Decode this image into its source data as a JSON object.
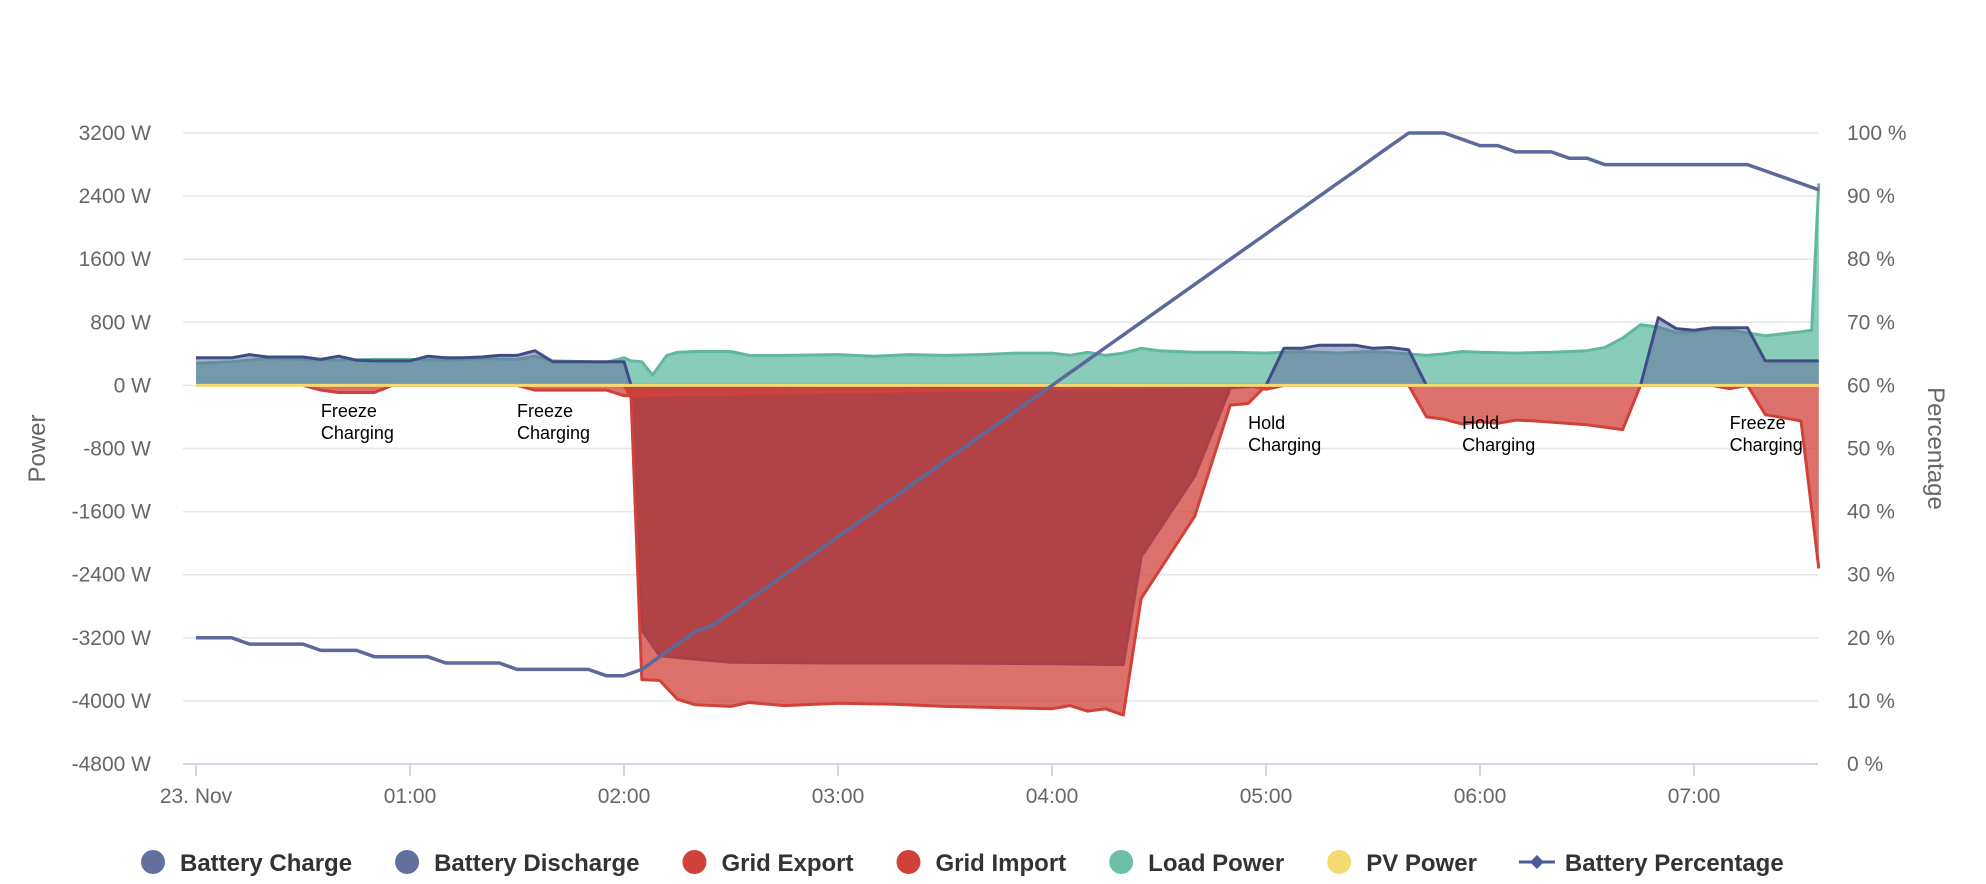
{
  "chart_data": {
    "type": "area",
    "yaxis_left": {
      "title": "Power",
      "range": [
        -4800,
        3200
      ],
      "ticks": [
        3200,
        2400,
        1600,
        800,
        0,
        -800,
        -1600,
        -2400,
        -3200,
        -4000,
        -4800
      ],
      "tick_labels": [
        "3200 W",
        "2400 W",
        "1600 W",
        "800 W",
        "0 W",
        "-800 W",
        "-1600 W",
        "-2400 W",
        "-3200 W",
        "-4000 W",
        "-4800 W"
      ]
    },
    "yaxis_right": {
      "title": "Percentage",
      "range": [
        0,
        100
      ],
      "ticks": [
        100,
        90,
        80,
        70,
        60,
        50,
        40,
        30,
        20,
        10,
        0
      ],
      "tick_labels": [
        "100 %",
        "90 %",
        "80 %",
        "70 %",
        "60 %",
        "50 %",
        "40 %",
        "30 %",
        "20 %",
        "10 %",
        "0 %"
      ]
    },
    "xaxis": {
      "range": [
        "00:00",
        "07:40"
      ],
      "ticks": [
        "00:00",
        "01:00",
        "02:00",
        "03:00",
        "04:00",
        "05:00",
        "06:00",
        "07:00"
      ],
      "tick_labels": [
        "23. Nov",
        "01:00",
        "02:00",
        "03:00",
        "04:00",
        "05:00",
        "06:00",
        "07:00"
      ]
    },
    "grid": true,
    "legend_position": "bottom",
    "series": [
      {
        "name": "Battery Charge",
        "color": "#6270a0",
        "kind": "area",
        "points": [
          [
            "00:00",
            350
          ],
          [
            "00:10",
            350
          ],
          [
            "00:15",
            390
          ],
          [
            "00:20",
            360
          ],
          [
            "00:30",
            360
          ],
          [
            "00:35",
            330
          ],
          [
            "00:40",
            370
          ],
          [
            "00:45",
            320
          ],
          [
            "00:50",
            310
          ],
          [
            "01:00",
            310
          ],
          [
            "01:05",
            370
          ],
          [
            "01:10",
            350
          ],
          [
            "01:15",
            350
          ],
          [
            "01:20",
            360
          ],
          [
            "01:25",
            380
          ],
          [
            "01:30",
            380
          ],
          [
            "01:35",
            440
          ],
          [
            "01:40",
            300
          ],
          [
            "01:50",
            300
          ],
          [
            "02:00",
            300
          ],
          [
            "02:02",
            0
          ],
          [
            "04:50",
            0
          ],
          [
            "05:00",
            0
          ],
          [
            "05:05",
            470
          ],
          [
            "05:10",
            470
          ],
          [
            "05:15",
            510
          ],
          [
            "05:25",
            510
          ],
          [
            "05:30",
            470
          ],
          [
            "05:35",
            480
          ],
          [
            "05:40",
            450
          ],
          [
            "05:45",
            0
          ],
          [
            "06:40",
            0
          ],
          [
            "06:45",
            0
          ],
          [
            "06:50",
            860
          ],
          [
            "06:55",
            720
          ],
          [
            "07:00",
            700
          ],
          [
            "07:05",
            730
          ],
          [
            "07:15",
            730
          ],
          [
            "07:20",
            310
          ],
          [
            "07:35",
            310
          ]
        ]
      },
      {
        "name": "Battery Discharge",
        "color": "#53446e",
        "kind": "area",
        "points": [
          [
            "02:00",
            0
          ],
          [
            "02:02",
            -80
          ],
          [
            "02:05",
            -3100
          ],
          [
            "02:10",
            -3430
          ],
          [
            "02:20",
            -3470
          ],
          [
            "02:30",
            -3510
          ],
          [
            "03:00",
            -3520
          ],
          [
            "03:30",
            -3520
          ],
          [
            "04:00",
            -3530
          ],
          [
            "04:20",
            -3540
          ],
          [
            "04:25",
            -2170
          ],
          [
            "04:40",
            -1150
          ],
          [
            "04:50",
            -30
          ],
          [
            "05:00",
            0
          ]
        ]
      },
      {
        "name": "Grid Export",
        "color": "#d0413a",
        "kind": "area",
        "points": [
          [
            "00:30",
            0
          ],
          [
            "00:35",
            -60
          ],
          [
            "00:40",
            -90
          ],
          [
            "00:50",
            -90
          ],
          [
            "00:55",
            0
          ],
          [
            "01:30",
            0
          ],
          [
            "01:35",
            -60
          ],
          [
            "01:45",
            -60
          ],
          [
            "01:55",
            -60
          ],
          [
            "02:00",
            -130
          ],
          [
            "04:55",
            0
          ],
          [
            "05:00",
            -50
          ],
          [
            "05:05",
            0
          ],
          [
            "07:05",
            0
          ],
          [
            "07:10",
            -40
          ],
          [
            "07:15",
            0
          ]
        ]
      },
      {
        "name": "Grid Import",
        "color": "#d0413a",
        "kind": "area",
        "points": [
          [
            "02:00",
            0
          ],
          [
            "02:02",
            -160
          ],
          [
            "02:05",
            -3730
          ],
          [
            "02:10",
            -3740
          ],
          [
            "02:15",
            -3980
          ],
          [
            "02:20",
            -4050
          ],
          [
            "02:30",
            -4070
          ],
          [
            "02:35",
            -4020
          ],
          [
            "02:45",
            -4060
          ],
          [
            "03:00",
            -4030
          ],
          [
            "03:15",
            -4040
          ],
          [
            "03:30",
            -4070
          ],
          [
            "04:00",
            -4100
          ],
          [
            "04:05",
            -4060
          ],
          [
            "04:10",
            -4130
          ],
          [
            "04:15",
            -4100
          ],
          [
            "04:20",
            -4180
          ],
          [
            "04:25",
            -2700
          ],
          [
            "04:40",
            -1660
          ],
          [
            "04:50",
            -250
          ],
          [
            "04:55",
            -230
          ],
          [
            "05:00",
            0
          ],
          [
            "05:40",
            0
          ],
          [
            "05:45",
            -400
          ],
          [
            "05:50",
            -430
          ],
          [
            "05:55",
            -490
          ],
          [
            "06:00",
            -460
          ],
          [
            "06:05",
            -480
          ],
          [
            "06:10",
            -440
          ],
          [
            "06:15",
            -450
          ],
          [
            "06:30",
            -500
          ],
          [
            "06:40",
            -560
          ],
          [
            "06:45",
            0
          ],
          [
            "07:15",
            0
          ],
          [
            "07:20",
            -370
          ],
          [
            "07:30",
            -450
          ],
          [
            "07:35",
            -2320
          ]
        ]
      },
      {
        "name": "Load Power",
        "color": "#6bbfa8",
        "kind": "area",
        "points": [
          [
            "00:00",
            280
          ],
          [
            "00:10",
            300
          ],
          [
            "00:20",
            340
          ],
          [
            "00:30",
            330
          ],
          [
            "00:40",
            320
          ],
          [
            "00:50",
            330
          ],
          [
            "01:00",
            330
          ],
          [
            "01:10",
            320
          ],
          [
            "01:20",
            340
          ],
          [
            "01:30",
            330
          ],
          [
            "01:35",
            370
          ],
          [
            "01:40",
            310
          ],
          [
            "01:50",
            300
          ],
          [
            "01:55",
            290
          ],
          [
            "02:00",
            350
          ],
          [
            "02:02",
            310
          ],
          [
            "02:05",
            300
          ],
          [
            "02:08",
            130
          ],
          [
            "02:12",
            380
          ],
          [
            "02:15",
            420
          ],
          [
            "02:20",
            430
          ],
          [
            "02:30",
            430
          ],
          [
            "02:35",
            380
          ],
          [
            "02:45",
            380
          ],
          [
            "03:00",
            390
          ],
          [
            "03:10",
            370
          ],
          [
            "03:20",
            390
          ],
          [
            "03:30",
            380
          ],
          [
            "03:40",
            390
          ],
          [
            "03:50",
            410
          ],
          [
            "04:00",
            410
          ],
          [
            "04:05",
            380
          ],
          [
            "04:10",
            420
          ],
          [
            "04:15",
            380
          ],
          [
            "04:20",
            410
          ],
          [
            "04:25",
            470
          ],
          [
            "04:30",
            440
          ],
          [
            "04:40",
            420
          ],
          [
            "04:50",
            420
          ],
          [
            "05:00",
            410
          ],
          [
            "05:10",
            430
          ],
          [
            "05:20",
            410
          ],
          [
            "05:30",
            430
          ],
          [
            "05:40",
            400
          ],
          [
            "05:45",
            380
          ],
          [
            "05:50",
            400
          ],
          [
            "05:55",
            430
          ],
          [
            "06:00",
            420
          ],
          [
            "06:10",
            410
          ],
          [
            "06:20",
            420
          ],
          [
            "06:30",
            440
          ],
          [
            "06:35",
            480
          ],
          [
            "06:40",
            600
          ],
          [
            "06:45",
            770
          ],
          [
            "06:50",
            740
          ],
          [
            "06:55",
            670
          ],
          [
            "07:00",
            680
          ],
          [
            "07:05",
            720
          ],
          [
            "07:10",
            700
          ],
          [
            "07:20",
            630
          ],
          [
            "07:30",
            680
          ],
          [
            "07:33",
            700
          ],
          [
            "07:35",
            2560
          ]
        ]
      },
      {
        "name": "PV Power",
        "color": "#f5da72",
        "kind": "line",
        "points": [
          [
            "00:00",
            0
          ],
          [
            "07:35",
            0
          ]
        ]
      },
      {
        "name": "Battery Percentage",
        "color": "#5b6a9a",
        "kind": "line",
        "axis": "percentage",
        "points": [
          [
            "00:00",
            20
          ],
          [
            "00:10",
            20
          ],
          [
            "00:15",
            19
          ],
          [
            "00:30",
            19
          ],
          [
            "00:35",
            18
          ],
          [
            "00:45",
            18
          ],
          [
            "00:50",
            17
          ],
          [
            "01:05",
            17
          ],
          [
            "01:10",
            16
          ],
          [
            "01:25",
            16
          ],
          [
            "01:30",
            15
          ],
          [
            "01:50",
            15
          ],
          [
            "01:55",
            14
          ],
          [
            "02:00",
            14
          ],
          [
            "02:05",
            15
          ],
          [
            "02:10",
            17
          ],
          [
            "02:15",
            19
          ],
          [
            "02:20",
            21
          ],
          [
            "02:25",
            22
          ],
          [
            "02:30",
            24
          ],
          [
            "02:35",
            26
          ],
          [
            "02:40",
            28
          ],
          [
            "02:45",
            30
          ],
          [
            "02:50",
            32
          ],
          [
            "02:55",
            34
          ],
          [
            "03:00",
            36
          ],
          [
            "03:05",
            38
          ],
          [
            "03:10",
            40
          ],
          [
            "03:15",
            42
          ],
          [
            "03:20",
            44
          ],
          [
            "03:25",
            46
          ],
          [
            "03:30",
            48
          ],
          [
            "03:35",
            50
          ],
          [
            "03:40",
            52
          ],
          [
            "03:45",
            54
          ],
          [
            "03:50",
            56
          ],
          [
            "03:55",
            58
          ],
          [
            "04:00",
            60
          ],
          [
            "04:05",
            62
          ],
          [
            "04:10",
            64
          ],
          [
            "04:15",
            66
          ],
          [
            "04:20",
            68
          ],
          [
            "04:25",
            70
          ],
          [
            "04:30",
            72
          ],
          [
            "04:35",
            74
          ],
          [
            "04:40",
            76
          ],
          [
            "04:45",
            78
          ],
          [
            "04:50",
            80
          ],
          [
            "04:55",
            82
          ],
          [
            "05:00",
            84
          ],
          [
            "05:05",
            86
          ],
          [
            "05:10",
            88
          ],
          [
            "05:15",
            90
          ],
          [
            "05:20",
            92
          ],
          [
            "05:25",
            94
          ],
          [
            "05:30",
            96
          ],
          [
            "05:35",
            98
          ],
          [
            "05:40",
            100
          ],
          [
            "05:45",
            100
          ],
          [
            "05:50",
            100
          ],
          [
            "05:55",
            99
          ],
          [
            "06:00",
            98
          ],
          [
            "06:05",
            98
          ],
          [
            "06:10",
            97
          ],
          [
            "06:15",
            97
          ],
          [
            "06:20",
            97
          ],
          [
            "06:25",
            96
          ],
          [
            "06:30",
            96
          ],
          [
            "06:35",
            95
          ],
          [
            "06:40",
            95
          ],
          [
            "06:45",
            95
          ],
          [
            "06:50",
            95
          ],
          [
            "06:55",
            95
          ],
          [
            "07:00",
            95
          ],
          [
            "07:05",
            95
          ],
          [
            "07:10",
            95
          ],
          [
            "07:15",
            95
          ],
          [
            "07:20",
            94
          ],
          [
            "07:25",
            93
          ],
          [
            "07:30",
            92
          ],
          [
            "07:35",
            91
          ]
        ]
      }
    ],
    "annotations": [
      {
        "time": "00:35",
        "value": -150,
        "lines": [
          "Freeze",
          "Charging"
        ]
      },
      {
        "time": "01:30",
        "value": -150,
        "lines": [
          "Freeze",
          "Charging"
        ]
      },
      {
        "time": "04:55",
        "value": -300,
        "lines": [
          "Hold",
          "Charging"
        ]
      },
      {
        "time": "05:55",
        "value": -300,
        "lines": [
          "Hold",
          "Charging"
        ]
      },
      {
        "time": "07:10",
        "value": -300,
        "lines": [
          "Freeze",
          "Charging"
        ]
      }
    ],
    "legend": [
      {
        "label": "Battery Charge",
        "color": "#6270a0",
        "symbol": "dot"
      },
      {
        "label": "Battery Discharge",
        "color": "#6270a0",
        "symbol": "dot"
      },
      {
        "label": "Grid Export",
        "color": "#d0413a",
        "symbol": "dot"
      },
      {
        "label": "Grid Import",
        "color": "#d0413a",
        "symbol": "dot"
      },
      {
        "label": "Load Power",
        "color": "#6bbfa8",
        "symbol": "dot"
      },
      {
        "label": "PV Power",
        "color": "#f5da72",
        "symbol": "dot"
      },
      {
        "label": "Battery Percentage",
        "color": "#4b5a96",
        "symbol": "line-diamond"
      }
    ]
  }
}
